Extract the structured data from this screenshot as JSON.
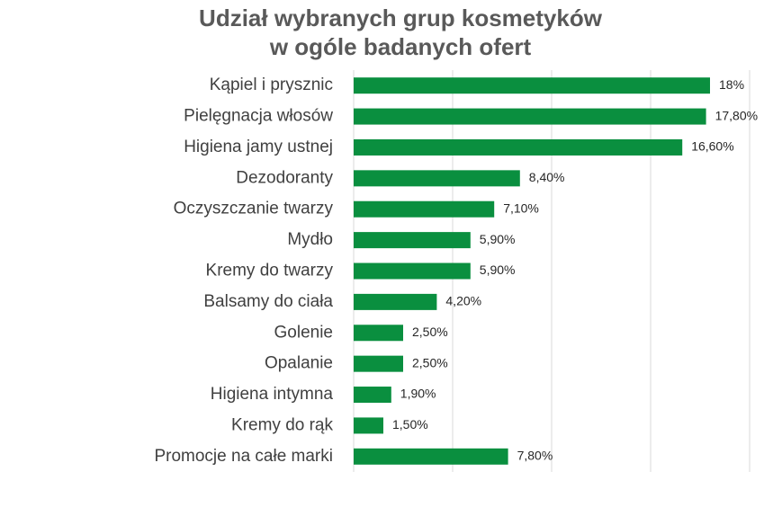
{
  "chart_data": {
    "type": "bar",
    "orientation": "horizontal",
    "title": [
      "Udział wybranych grup kosmetyków",
      "w ogóle badanych ofert"
    ],
    "categories": [
      "Kąpiel i prysznic",
      "Pielęgnacja włosów",
      "Higiena jamy ustnej",
      "Dezodoranty",
      "Oczyszczanie twarzy",
      "Mydło",
      "Kremy do twarzy",
      "Balsamy do ciała",
      "Golenie",
      "Opalanie",
      "Higiena intymna",
      "Kremy do rąk",
      "Promocje na całe marki"
    ],
    "values": [
      18,
      17.8,
      16.6,
      8.4,
      7.1,
      5.9,
      5.9,
      4.2,
      2.5,
      2.5,
      1.9,
      1.5,
      7.8
    ],
    "value_labels": [
      "18%",
      "17,80%",
      "16,60%",
      "8,40%",
      "7,10%",
      "5,90%",
      "5,90%",
      "4,20%",
      "2,50%",
      "2,50%",
      "1,90%",
      "1,50%",
      "7,80%"
    ],
    "color": "#0a8f3f",
    "xlim": [
      0,
      20
    ],
    "xticks": [
      0,
      5,
      10,
      15,
      20
    ],
    "grid": true
  }
}
